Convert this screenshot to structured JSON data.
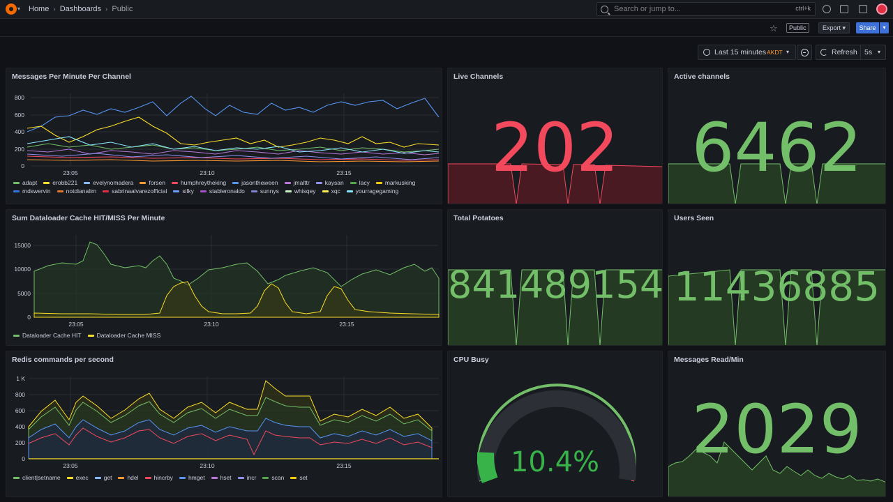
{
  "nav": {
    "breadcrumbs": [
      "Home",
      "Dashboards",
      "Public"
    ],
    "search_placeholder": "Search or jump to...",
    "search_shortcut": "ctrl+k"
  },
  "toolbar": {
    "public_badge": "Public",
    "export_label": "Export",
    "share_label": "Share",
    "time_range": "Last 15 minutes",
    "timezone": "AKDT",
    "refresh_label": "Refresh",
    "refresh_interval": "5s"
  },
  "colors": {
    "green": "#73bf69",
    "red": "#f2495c",
    "yellow": "#fade2a",
    "blue": "#5794f2",
    "orange": "#ff9830"
  },
  "panels": {
    "messages": {
      "title": "Messages Per Minute Per Channel",
      "x_ticks": [
        "23:05",
        "23:10",
        "23:15"
      ],
      "y_ticks": [
        "0",
        "200",
        "400",
        "600",
        "800"
      ],
      "legend": [
        {
          "name": "adapt",
          "color": "#73bf69"
        },
        {
          "name": "erobb221",
          "color": "#fade2a"
        },
        {
          "name": "evelynomadera",
          "color": "#8ab8ff"
        },
        {
          "name": "forsen",
          "color": "#ff9830"
        },
        {
          "name": "humphreytheking",
          "color": "#f2495c"
        },
        {
          "name": "jasontheween",
          "color": "#5794f2"
        },
        {
          "name": "jmalttr",
          "color": "#b877d9"
        },
        {
          "name": "kaysan",
          "color": "#8f8fef"
        },
        {
          "name": "lacy",
          "color": "#56a64b"
        },
        {
          "name": "markusking",
          "color": "#f2cc0c"
        },
        {
          "name": "mdswervin",
          "color": "#3274d9"
        },
        {
          "name": "notdianalim",
          "color": "#e0752d"
        },
        {
          "name": "sabrinaalvarezofficial",
          "color": "#e02f44"
        },
        {
          "name": "silky",
          "color": "#6e9fff"
        },
        {
          "name": "stableronaldo",
          "color": "#a352cc"
        },
        {
          "name": "sunnys",
          "color": "#7d83cf"
        },
        {
          "name": "whisqey",
          "color": "#c8f2c2"
        },
        {
          "name": "xqc",
          "color": "#ffee52"
        },
        {
          "name": "yourragegaming",
          "color": "#8ae6ff"
        }
      ]
    },
    "live_channels": {
      "title": "Live Channels",
      "value": "202"
    },
    "active_channels": {
      "title": "Active channels",
      "value": "6462"
    },
    "dataloader": {
      "title": "Sum Dataloader Cache HIT/MISS Per Minute",
      "x_ticks": [
        "23:05",
        "23:10",
        "23:15"
      ],
      "y_ticks": [
        "0",
        "5000",
        "10000",
        "15000"
      ],
      "legend": [
        {
          "name": "Dataloader Cache HIT",
          "color": "#73bf69"
        },
        {
          "name": "Dataloader Cache MISS",
          "color": "#fade2a"
        }
      ]
    },
    "total_potatoes": {
      "title": "Total Potatoes",
      "value": "841489154"
    },
    "users_seen": {
      "title": "Users Seen",
      "value": "11436885"
    },
    "redis": {
      "title": "Redis commands per second",
      "x_ticks": [
        "23:05",
        "23:10",
        "23:15"
      ],
      "y_ticks": [
        "0",
        "200",
        "400",
        "600",
        "800",
        "1 K"
      ],
      "legend": [
        {
          "name": "client|setname",
          "color": "#73bf69"
        },
        {
          "name": "exec",
          "color": "#fade2a"
        },
        {
          "name": "get",
          "color": "#8ab8ff"
        },
        {
          "name": "hdel",
          "color": "#ff9830"
        },
        {
          "name": "hincrby",
          "color": "#f2495c"
        },
        {
          "name": "hmget",
          "color": "#5794f2"
        },
        {
          "name": "hset",
          "color": "#b877d9"
        },
        {
          "name": "incr",
          "color": "#8f8fef"
        },
        {
          "name": "scan",
          "color": "#56a64b"
        },
        {
          "name": "set",
          "color": "#f2cc0c"
        }
      ]
    },
    "cpu": {
      "title": "CPU Busy",
      "value": "10.4%",
      "percent": 10.4
    },
    "messages_read": {
      "title": "Messages Read/Min",
      "value": "2029"
    }
  }
}
